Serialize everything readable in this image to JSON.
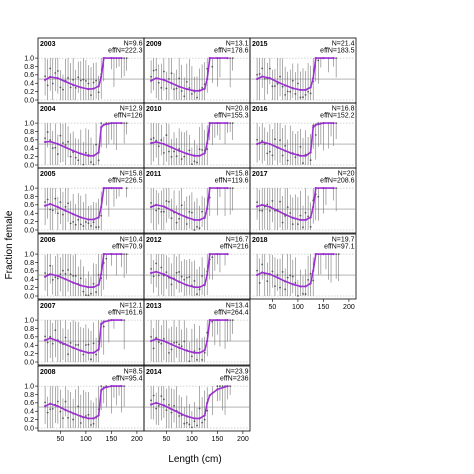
{
  "chart_data": {
    "type": "line",
    "xlabel": "Length (cm)",
    "ylabel": "Fraction female",
    "xlim": [
      10,
      210
    ],
    "ylim": [
      0,
      1.05
    ],
    "x_ticks": [
      "50",
      "100",
      "150",
      "200"
    ],
    "y_ticks": [
      "0.0",
      "0.2",
      "0.4",
      "0.6",
      "0.8",
      "1.0"
    ],
    "reference_line_y": 0.5,
    "fit_color": "#9b30d0",
    "panels": [
      {
        "year": "2003",
        "N": "N=9.6",
        "effN": "effN=222.3",
        "fit_x": [
          20,
          30,
          45,
          60,
          75,
          90,
          105,
          115,
          125,
          130,
          135,
          150,
          170
        ],
        "fit_y": [
          0.48,
          0.55,
          0.52,
          0.44,
          0.36,
          0.3,
          0.26,
          0.27,
          0.33,
          0.55,
          1.0,
          1.0,
          1.0
        ]
      },
      {
        "year": "2009",
        "N": "N=13.1",
        "effN": "effN=178.6",
        "fit_x": [
          20,
          30,
          45,
          60,
          75,
          90,
          105,
          115,
          125,
          130,
          135,
          150,
          170
        ],
        "fit_y": [
          0.46,
          0.52,
          0.48,
          0.4,
          0.32,
          0.26,
          0.22,
          0.22,
          0.27,
          0.5,
          1.0,
          1.0,
          1.0
        ]
      },
      {
        "year": "2015",
        "N": "N=21.4",
        "effN": "effN=183.5",
        "fit_x": [
          20,
          30,
          45,
          60,
          75,
          90,
          105,
          115,
          125,
          130,
          135,
          150,
          170
        ],
        "fit_y": [
          0.5,
          0.56,
          0.52,
          0.43,
          0.35,
          0.28,
          0.24,
          0.24,
          0.3,
          0.52,
          1.0,
          1.0,
          1.0
        ]
      },
      {
        "year": "2004",
        "N": "N=12.9",
        "effN": "effN=126",
        "fit_x": [
          20,
          30,
          45,
          60,
          75,
          90,
          105,
          115,
          125,
          130,
          135,
          150,
          170
        ],
        "fit_y": [
          0.55,
          0.56,
          0.5,
          0.42,
          0.34,
          0.27,
          0.22,
          0.22,
          0.3,
          0.9,
          0.96,
          1.0,
          1.0
        ]
      },
      {
        "year": "2010",
        "N": "N=20.8",
        "effN": "effN=155.3",
        "fit_x": [
          20,
          30,
          45,
          60,
          75,
          90,
          105,
          115,
          125,
          130,
          135,
          150,
          170
        ],
        "fit_y": [
          0.52,
          0.55,
          0.5,
          0.42,
          0.34,
          0.27,
          0.22,
          0.22,
          0.28,
          0.52,
          1.0,
          1.0,
          1.0
        ]
      },
      {
        "year": "2016",
        "N": "N=16.8",
        "effN": "effN=152.2",
        "fit_x": [
          20,
          30,
          45,
          60,
          75,
          90,
          105,
          115,
          125,
          130,
          135,
          150,
          170
        ],
        "fit_y": [
          0.5,
          0.55,
          0.5,
          0.42,
          0.34,
          0.27,
          0.22,
          0.22,
          0.3,
          0.9,
          0.96,
          1.0,
          1.0
        ]
      },
      {
        "year": "2005",
        "N": "N=15.8",
        "effN": "effN=226.5",
        "fit_x": [
          20,
          30,
          45,
          60,
          75,
          90,
          105,
          115,
          125,
          130,
          135,
          150,
          170
        ],
        "fit_y": [
          0.58,
          0.62,
          0.55,
          0.46,
          0.38,
          0.3,
          0.25,
          0.25,
          0.3,
          0.55,
          1.0,
          1.0,
          1.0
        ]
      },
      {
        "year": "2011",
        "N": "N=15.8",
        "effN": "effN=119.6",
        "fit_x": [
          20,
          30,
          45,
          60,
          75,
          90,
          105,
          115,
          125,
          130,
          135,
          150,
          170
        ],
        "fit_y": [
          0.55,
          0.6,
          0.56,
          0.47,
          0.38,
          0.3,
          0.24,
          0.24,
          0.29,
          0.52,
          1.0,
          1.0,
          1.0
        ]
      },
      {
        "year": "2017",
        "N": "N=20",
        "effN": "effN=208.6",
        "fit_x": [
          20,
          30,
          45,
          60,
          75,
          90,
          105,
          115,
          125,
          130,
          135,
          150,
          170
        ],
        "fit_y": [
          0.56,
          0.6,
          0.55,
          0.46,
          0.37,
          0.29,
          0.24,
          0.24,
          0.3,
          0.55,
          1.0,
          1.0,
          1.0
        ]
      },
      {
        "year": "2006",
        "N": "N=10.4",
        "effN": "effN=70.9",
        "fit_x": [
          20,
          30,
          45,
          60,
          75,
          90,
          105,
          115,
          125,
          130,
          135,
          150,
          170
        ],
        "fit_y": [
          0.46,
          0.52,
          0.48,
          0.4,
          0.32,
          0.25,
          0.21,
          0.21,
          0.27,
          0.52,
          1.0,
          1.0,
          1.0
        ]
      },
      {
        "year": "2012",
        "N": "N=16.7",
        "effN": "effN=216",
        "fit_x": [
          20,
          30,
          45,
          60,
          75,
          90,
          105,
          115,
          125,
          130,
          135,
          150,
          170
        ],
        "fit_y": [
          0.55,
          0.58,
          0.52,
          0.43,
          0.34,
          0.26,
          0.21,
          0.21,
          0.27,
          0.5,
          1.0,
          1.0,
          1.0
        ]
      },
      {
        "year": "2018",
        "N": "N=19.7",
        "effN": "effN=97.1",
        "fit_x": [
          20,
          30,
          45,
          60,
          75,
          90,
          105,
          115,
          125,
          130,
          135,
          150,
          170
        ],
        "fit_y": [
          0.5,
          0.56,
          0.52,
          0.44,
          0.35,
          0.28,
          0.23,
          0.23,
          0.3,
          0.6,
          1.0,
          1.0,
          1.0
        ]
      },
      {
        "year": "2007",
        "N": "N=12.1",
        "effN": "effN=161.6",
        "fit_x": [
          20,
          30,
          45,
          60,
          75,
          90,
          105,
          115,
          125,
          130,
          135,
          150,
          170
        ],
        "fit_y": [
          0.52,
          0.57,
          0.5,
          0.42,
          0.34,
          0.27,
          0.22,
          0.22,
          0.3,
          0.9,
          0.96,
          1.0,
          1.0
        ]
      },
      {
        "year": "2013",
        "N": "N=13.4",
        "effN": "effN=264.4",
        "fit_x": [
          20,
          30,
          45,
          60,
          75,
          90,
          105,
          115,
          125,
          130,
          135,
          150,
          170
        ],
        "fit_y": [
          0.5,
          0.55,
          0.5,
          0.42,
          0.34,
          0.27,
          0.22,
          0.22,
          0.28,
          0.5,
          1.0,
          1.0,
          1.0
        ]
      },
      {
        "year": "2008",
        "N": "N=8.5",
        "effN": "effN=95.4",
        "fit_x": [
          20,
          30,
          45,
          60,
          75,
          90,
          105,
          115,
          125,
          130,
          135,
          150,
          170
        ],
        "fit_y": [
          0.52,
          0.58,
          0.52,
          0.43,
          0.35,
          0.28,
          0.23,
          0.23,
          0.3,
          0.9,
          0.96,
          1.0,
          1.0
        ]
      },
      {
        "year": "2014",
        "N": "N=23.9",
        "effN": "effN=236",
        "fit_x": [
          20,
          30,
          45,
          60,
          75,
          90,
          105,
          115,
          125,
          130,
          135,
          150,
          170
        ],
        "fit_y": [
          0.56,
          0.6,
          0.54,
          0.45,
          0.36,
          0.28,
          0.23,
          0.23,
          0.3,
          0.6,
          0.78,
          0.92,
          1.0
        ]
      }
    ]
  }
}
